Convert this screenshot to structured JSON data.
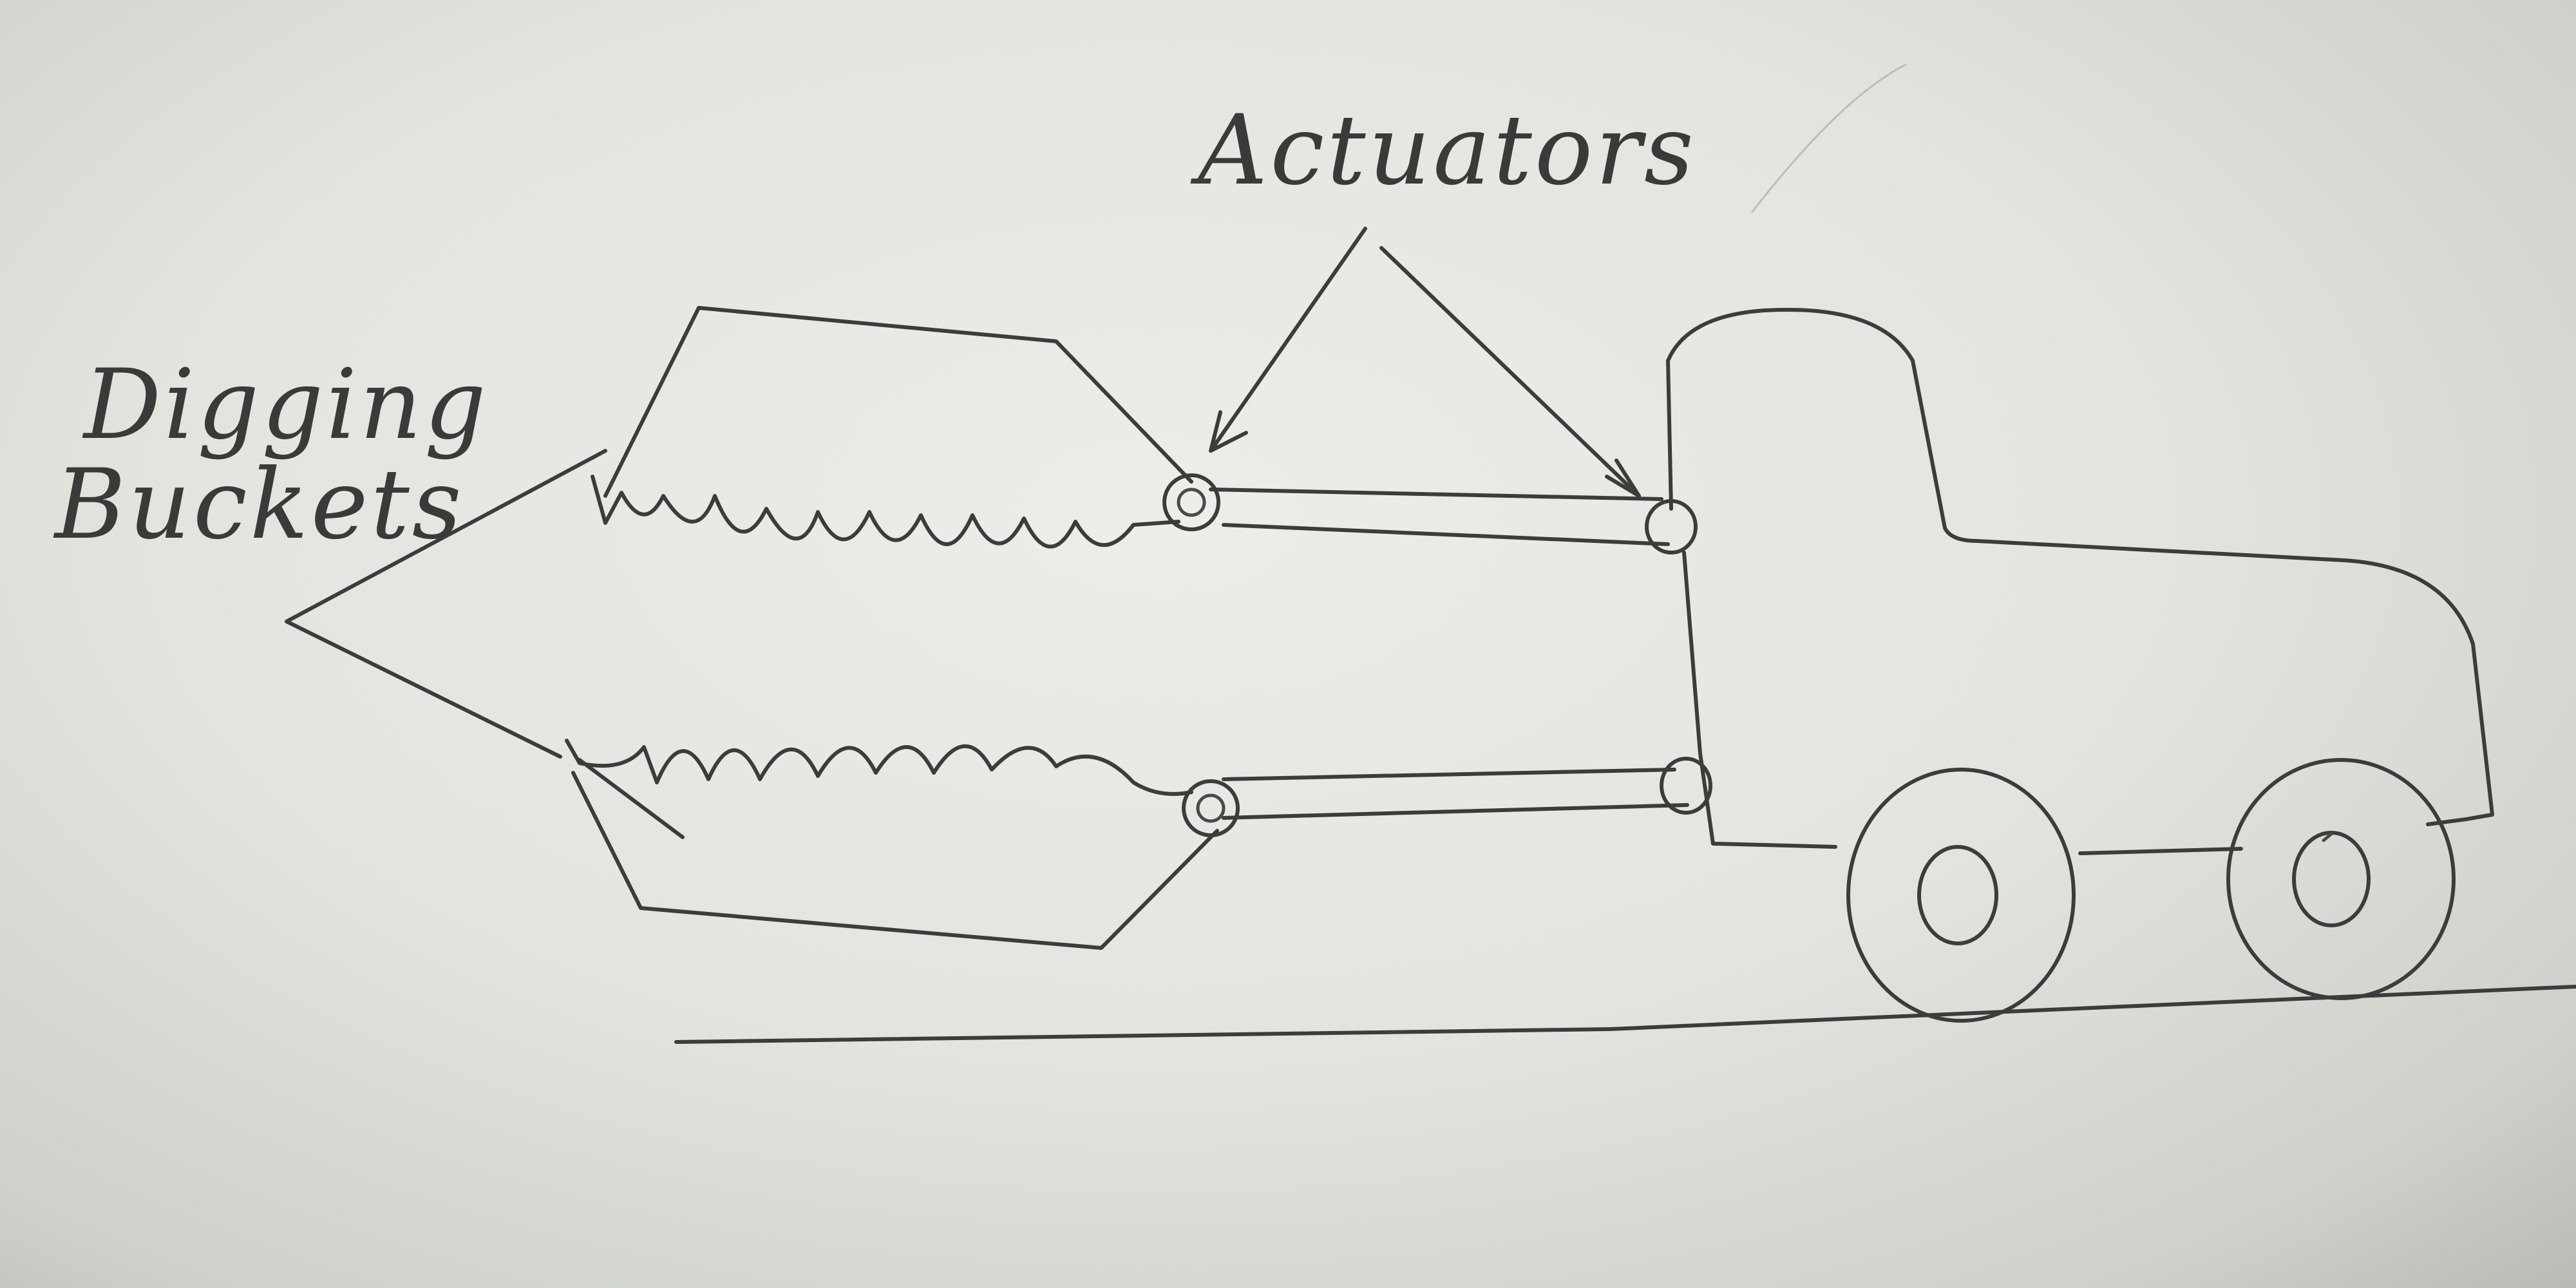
{
  "labels": {
    "actuators": "Actuators",
    "digging_line1": "Digging",
    "digging_line2": "Buckets"
  },
  "colors": {
    "ink": "#3c3c3c",
    "paper": "#e6e7e3"
  }
}
